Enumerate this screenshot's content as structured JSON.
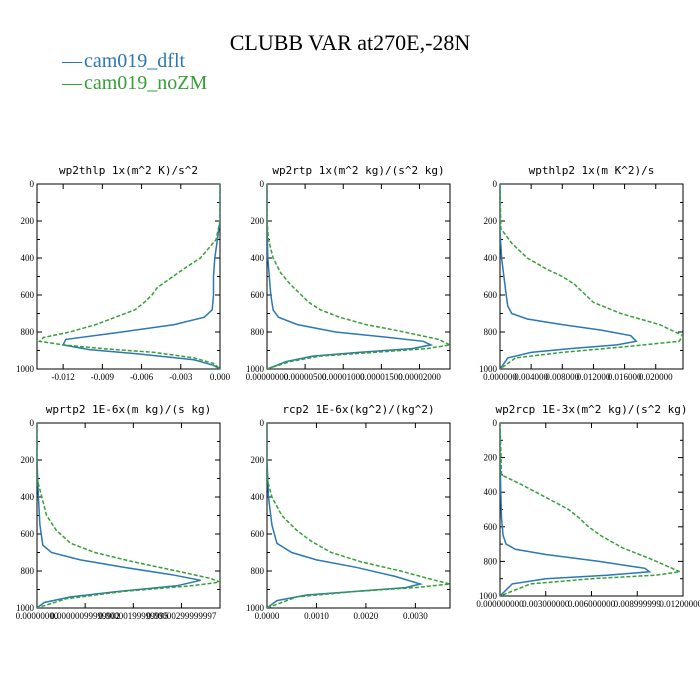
{
  "title": "CLUBB VAR at270E,-28N",
  "colors": {
    "dflt": "#2b78b3",
    "noZM": "#35a035"
  },
  "legend": [
    {
      "label": "cam019_dflt",
      "color": "#2b78b3"
    },
    {
      "label": "cam019_noZM",
      "color": "#35a035"
    }
  ],
  "chart_data": [
    {
      "type": "line",
      "title": "wp2thlp  1x(m^2 K)/s^2",
      "xlim": [
        -0.014,
        0.0
      ],
      "ylim": [
        1000,
        0
      ],
      "xticks": [
        -0.012,
        -0.009,
        -0.006,
        -0.003,
        0.0
      ],
      "xtick_labels": [
        "-0.012",
        "-0.009",
        "-0.006",
        "-0.003",
        "0.000"
      ],
      "yticks": [
        0,
        200,
        400,
        600,
        800,
        1000
      ],
      "ytick_labels": [
        "0",
        "200",
        "400",
        "600",
        "800",
        "1000"
      ],
      "series": [
        {
          "name": "cam019_dflt",
          "x": [
            0,
            0,
            -0.0002,
            -0.0004,
            -0.0005,
            -0.0005,
            -0.0006,
            -0.0012,
            -0.0035,
            -0.0075,
            -0.0118,
            -0.012,
            -0.01,
            -0.006,
            -0.002,
            -0.0005,
            0
          ],
          "y": [
            0,
            200,
            300,
            400,
            500,
            600,
            680,
            720,
            760,
            800,
            840,
            870,
            895,
            920,
            950,
            980,
            1000
          ]
        },
        {
          "name": "cam019_noZM",
          "x": [
            0,
            0,
            -0.0003,
            -0.0015,
            -0.0028,
            -0.004,
            -0.0048,
            -0.0052,
            -0.0058,
            -0.0065,
            -0.008,
            -0.0095,
            -0.0115,
            -0.0135,
            -0.0138,
            -0.012,
            -0.009,
            -0.005,
            -0.002,
            -0.0005,
            0
          ],
          "y": [
            0,
            200,
            300,
            400,
            460,
            520,
            560,
            600,
            640,
            680,
            720,
            760,
            800,
            830,
            850,
            870,
            890,
            910,
            940,
            970,
            1000
          ]
        }
      ]
    },
    {
      "type": "line",
      "title": "wp2rtp  1x(m^2 kg)/(s^2 kg)",
      "xlim": [
        0,
        2.4e-05
      ],
      "ylim": [
        1000,
        0
      ],
      "xticks": [
        0,
        5e-06,
        1e-05,
        1.5e-05,
        2e-05
      ],
      "xtick_labels": [
        "0.00000000",
        "0.00000500",
        "0.00001000",
        "0.00001500",
        "0.00002000"
      ],
      "yticks": [
        0,
        200,
        400,
        600,
        800,
        1000
      ],
      "ytick_labels": [
        "0",
        "200",
        "400",
        "600",
        "800",
        "1000"
      ],
      "series": [
        {
          "name": "cam019_dflt",
          "x": [
            0,
            0,
            1e-07,
            3e-07,
            5e-07,
            8e-07,
            1.5e-06,
            4e-06,
            9e-06,
            1.6e-05,
            2.05e-05,
            2.15e-05,
            1.9e-05,
            1.2e-05,
            6e-06,
            2.5e-06,
            0
          ],
          "y": [
            0,
            200,
            400,
            500,
            600,
            680,
            720,
            760,
            800,
            830,
            850,
            870,
            890,
            910,
            930,
            960,
            1000
          ]
        },
        {
          "name": "cam019_noZM",
          "x": [
            0,
            0,
            2e-07,
            8e-07,
            1.8e-06,
            3e-06,
            4.5e-06,
            5.5e-06,
            7e-06,
            9.5e-06,
            1.3e-05,
            1.8e-05,
            2.25e-05,
            2.4e-05,
            2.1e-05,
            1.4e-05,
            7e-06,
            3e-06,
            0
          ],
          "y": [
            0,
            200,
            300,
            400,
            480,
            540,
            600,
            640,
            680,
            720,
            760,
            800,
            840,
            870,
            890,
            910,
            930,
            960,
            1000
          ]
        }
      ]
    },
    {
      "type": "line",
      "title": "wpthlp2  1x(m K^2)/s",
      "xlim": [
        0,
        0.0235
      ],
      "ylim": [
        1000,
        0
      ],
      "xticks": [
        0,
        0.004,
        0.008,
        0.012,
        0.016,
        0.02
      ],
      "xtick_labels": [
        "0.000000",
        "0.004000",
        "0.008000",
        "0.012000",
        "0.016000",
        "0.020000"
      ],
      "yticks": [
        0,
        200,
        400,
        600,
        800,
        1000
      ],
      "ytick_labels": [
        "0",
        "200",
        "400",
        "600",
        "800",
        "1000"
      ],
      "series": [
        {
          "name": "cam019_dflt",
          "x": [
            0,
            0,
            0.0002,
            0.0005,
            0.0008,
            0.001,
            0.0015,
            0.0035,
            0.008,
            0.013,
            0.0168,
            0.0175,
            0.015,
            0.009,
            0.004,
            0.001,
            0
          ],
          "y": [
            0,
            250,
            400,
            500,
            600,
            660,
            700,
            730,
            760,
            790,
            820,
            850,
            870,
            890,
            910,
            940,
            1000
          ]
        },
        {
          "name": "cam019_noZM",
          "x": [
            0,
            0.0001,
            0.0015,
            0.0035,
            0.006,
            0.008,
            0.0095,
            0.0105,
            0.012,
            0.0155,
            0.0205,
            0.0235,
            0.023,
            0.016,
            0.008,
            0.002,
            0
          ],
          "y": [
            0,
            240,
            320,
            400,
            460,
            500,
            540,
            580,
            640,
            700,
            760,
            820,
            850,
            880,
            910,
            940,
            1000
          ]
        }
      ]
    },
    {
      "type": "line",
      "title": "wprtp2  1E-6x(m kg)/(s kg)",
      "xlim": [
        0,
        3.8e-06
      ],
      "ylim": [
        1000,
        0
      ],
      "xticks": [
        0,
        1e-06,
        2e-06,
        3e-06
      ],
      "xtick_labels": [
        "0.00000000",
        "0.00000099999902",
        "0.00000199999995",
        "0.00000299999997"
      ],
      "yticks": [
        0,
        200,
        400,
        600,
        800,
        1000
      ],
      "ytick_labels": [
        "0",
        "200",
        "400",
        "600",
        "800",
        "1000"
      ],
      "series": [
        {
          "name": "cam019_dflt",
          "x": [
            0,
            0,
            3e-08,
            6e-08,
            1.2e-07,
            3e-07,
            9e-07,
            1.8e-06,
            2.8e-06,
            3.4e-06,
            2.9e-06,
            1.7e-06,
            7e-07,
            1.5e-07,
            0
          ],
          "y": [
            0,
            200,
            400,
            550,
            660,
            700,
            740,
            780,
            820,
            850,
            880,
            910,
            940,
            970,
            1000
          ]
        },
        {
          "name": "cam019_noZM",
          "x": [
            0,
            0,
            1e-07,
            2e-07,
            4e-07,
            7e-07,
            1.2e-06,
            2e-06,
            2.9e-06,
            3.6e-06,
            3.8e-06,
            3.2e-06,
            1.8e-06,
            6e-07,
            0
          ],
          "y": [
            0,
            300,
            400,
            500,
            580,
            650,
            700,
            750,
            800,
            840,
            860,
            880,
            910,
            950,
            1000
          ]
        }
      ]
    },
    {
      "type": "line",
      "title": "rcp2  1E-6x(kg^2)/(kg^2)",
      "xlim": [
        0,
        0.0037
      ],
      "ylim": [
        1000,
        0
      ],
      "xticks": [
        0,
        0.001,
        0.002,
        0.003
      ],
      "xtick_labels": [
        "0.0000",
        "0.0010",
        "0.0020",
        "0.0030"
      ],
      "yticks": [
        0,
        200,
        400,
        600,
        800,
        1000
      ],
      "ytick_labels": [
        "0",
        "200",
        "400",
        "600",
        "800",
        "1000"
      ],
      "series": [
        {
          "name": "cam019_dflt",
          "x": [
            0,
            0,
            3e-05,
            0.0001,
            0.0002,
            0.0005,
            0.001,
            0.0018,
            0.0026,
            0.0031,
            0.0028,
            0.0018,
            0.0008,
            0.0002,
            0
          ],
          "y": [
            0,
            200,
            400,
            550,
            650,
            700,
            740,
            780,
            830,
            870,
            890,
            910,
            930,
            960,
            1000
          ]
        },
        {
          "name": "cam019_noZM",
          "x": [
            0,
            0,
            0.0001,
            0.0003,
            0.0006,
            0.0009,
            0.0013,
            0.0019,
            0.0027,
            0.0034,
            0.0037,
            0.003,
            0.0018,
            0.0006,
            0
          ],
          "y": [
            0,
            300,
            400,
            500,
            580,
            640,
            700,
            750,
            800,
            850,
            870,
            890,
            910,
            940,
            1000
          ]
        }
      ]
    },
    {
      "type": "line",
      "title": "wp2rcp  1E-3x(m^2 kg)/(s^2 kg)",
      "xlim": [
        0,
        0.012
      ],
      "ylim": [
        1000,
        0
      ],
      "xticks": [
        0,
        0.003,
        0.006,
        0.009,
        0.012
      ],
      "xtick_labels": [
        "0.000000000",
        "0.003000000",
        "0.006000000",
        "0.008999999",
        "0.012000000"
      ],
      "yticks": [
        0,
        200,
        400,
        600,
        800,
        1000
      ],
      "ytick_labels": [
        "0",
        "200",
        "400",
        "600",
        "800",
        "1000"
      ],
      "series": [
        {
          "name": "cam019_dflt",
          "x": [
            0,
            0,
            5e-05,
            0.0001,
            0.0002,
            0.0004,
            0.001,
            0.003,
            0.0065,
            0.0095,
            0.0098,
            0.007,
            0.003,
            0.0008,
            0
          ],
          "y": [
            0,
            200,
            400,
            550,
            650,
            700,
            730,
            760,
            800,
            840,
            860,
            880,
            900,
            930,
            1000
          ]
        },
        {
          "name": "cam019_noZM",
          "x": [
            0,
            0.0001,
            0.0015,
            0.003,
            0.0045,
            0.0052,
            0.0058,
            0.0066,
            0.008,
            0.01,
            0.0118,
            0.0102,
            0.006,
            0.002,
            0
          ],
          "y": [
            0,
            300,
            360,
            430,
            500,
            550,
            600,
            650,
            720,
            790,
            860,
            880,
            900,
            930,
            1000
          ]
        }
      ]
    }
  ]
}
